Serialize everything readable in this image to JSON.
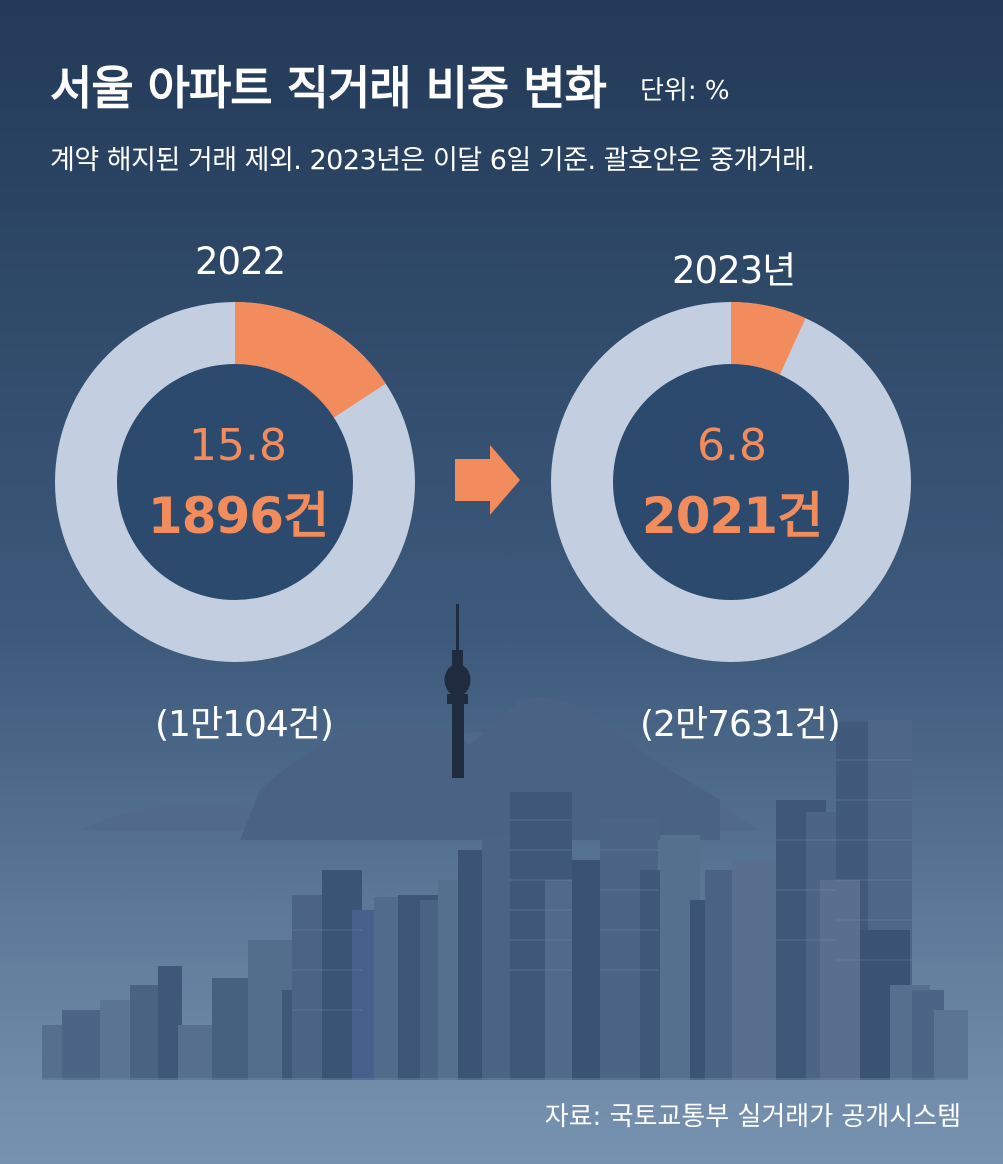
{
  "title": "서울 아파트 직거래 비중 변화",
  "unit_label": "단위: %",
  "subtitle": "계약 해지된 거래 제외. 2023년은 이달 6일 기준. 괄호안은 중개거래.",
  "source": "자료: 국토교통부 실거래가 공개시스템",
  "colors": {
    "accent": "#f28c5c",
    "ring_rest": "#c3cfe0",
    "center_fill": "#2b4a6e",
    "bg_top": "#253d5c",
    "bg_bottom": "#7b95b3"
  },
  "chart_data": [
    {
      "type": "pie",
      "year_label": "2022",
      "value": 15.8,
      "value_label": "15.8",
      "count_label": "1896건",
      "total_label": "(1만104건)"
    },
    {
      "type": "pie",
      "year_label": "2023년",
      "value": 6.8,
      "value_label": "6.8",
      "count_label": "2021건",
      "total_label": "(2만7631건)"
    }
  ]
}
